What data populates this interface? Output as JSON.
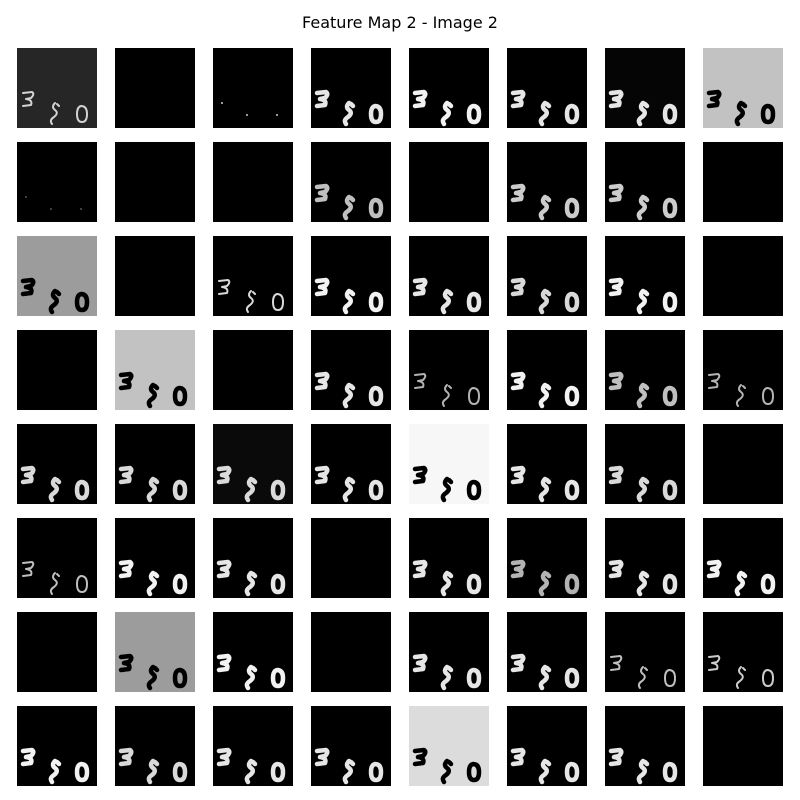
{
  "figure": {
    "title": "Feature Map 2 - Image 2",
    "rows": 8,
    "cols": 8
  },
  "tiles": [
    {
      "bg": "#262626",
      "digit": "#f2f2f2",
      "style": "outline",
      "brightness": 0.85
    },
    {
      "bg": "#000000",
      "digit": null,
      "style": "none",
      "brightness": 0
    },
    {
      "bg": "#000000",
      "digit": "#ffffff",
      "style": "dots",
      "brightness": 0.6
    },
    {
      "bg": "#000000",
      "digit": "#ffffff",
      "style": "filled",
      "brightness": 0.9
    },
    {
      "bg": "#000000",
      "digit": "#ffffff",
      "style": "filled",
      "brightness": 0.95
    },
    {
      "bg": "#000000",
      "digit": "#ffffff",
      "style": "filled",
      "brightness": 0.9
    },
    {
      "bg": "#050505",
      "digit": "#ffffff",
      "style": "filled",
      "brightness": 0.9
    },
    {
      "bg": "#c2c2c2",
      "digit": "#000000",
      "style": "filled",
      "brightness": 1
    },
    {
      "bg": "#000000",
      "digit": "#ffffff",
      "style": "dots",
      "brightness": 0.25
    },
    {
      "bg": "#000000",
      "digit": null,
      "style": "none",
      "brightness": 0
    },
    {
      "bg": "#000000",
      "digit": null,
      "style": "none",
      "brightness": 0
    },
    {
      "bg": "#000000",
      "digit": "#ffffff",
      "style": "filled",
      "brightness": 0.75
    },
    {
      "bg": "#000000",
      "digit": null,
      "style": "none",
      "brightness": 0
    },
    {
      "bg": "#000000",
      "digit": "#ffffff",
      "style": "filled",
      "brightness": 0.8
    },
    {
      "bg": "#000000",
      "digit": "#ffffff",
      "style": "filled",
      "brightness": 0.8
    },
    {
      "bg": "#000000",
      "digit": null,
      "style": "none",
      "brightness": 0
    },
    {
      "bg": "#9c9c9c",
      "digit": "#000000",
      "style": "filled",
      "brightness": 1
    },
    {
      "bg": "#000000",
      "digit": null,
      "style": "none",
      "brightness": 0
    },
    {
      "bg": "#000000",
      "digit": "#ffffff",
      "style": "outline",
      "brightness": 0.85
    },
    {
      "bg": "#000000",
      "digit": "#ffffff",
      "style": "filled",
      "brightness": 0.95
    },
    {
      "bg": "#000000",
      "digit": "#ffffff",
      "style": "filled",
      "brightness": 0.9
    },
    {
      "bg": "#000000",
      "digit": "#ffffff",
      "style": "filled",
      "brightness": 0.85
    },
    {
      "bg": "#000000",
      "digit": "#ffffff",
      "style": "filled",
      "brightness": 0.95
    },
    {
      "bg": "#000000",
      "digit": null,
      "style": "none",
      "brightness": 0
    },
    {
      "bg": "#000000",
      "digit": null,
      "style": "none",
      "brightness": 0
    },
    {
      "bg": "#c2c2c2",
      "digit": "#000000",
      "style": "filled",
      "brightness": 1
    },
    {
      "bg": "#000000",
      "digit": null,
      "style": "none",
      "brightness": 0
    },
    {
      "bg": "#000000",
      "digit": "#ffffff",
      "style": "filled",
      "brightness": 0.9
    },
    {
      "bg": "#000000",
      "digit": "#ffffff",
      "style": "outline",
      "brightness": 0.7
    },
    {
      "bg": "#000000",
      "digit": "#ffffff",
      "style": "filled",
      "brightness": 0.95
    },
    {
      "bg": "#000000",
      "digit": "#ffffff",
      "style": "filled",
      "brightness": 0.75
    },
    {
      "bg": "#000000",
      "digit": "#ffffff",
      "style": "outline",
      "brightness": 0.7
    },
    {
      "bg": "#000000",
      "digit": "#ffffff",
      "style": "filled",
      "brightness": 0.85
    },
    {
      "bg": "#000000",
      "digit": "#ffffff",
      "style": "filled",
      "brightness": 0.85
    },
    {
      "bg": "#0a0a0a",
      "digit": "#ffffff",
      "style": "filled",
      "brightness": 0.85
    },
    {
      "bg": "#000000",
      "digit": "#ffffff",
      "style": "filled",
      "brightness": 0.9
    },
    {
      "bg": "#f7f7f7",
      "digit": "#000000",
      "style": "filled",
      "brightness": 1
    },
    {
      "bg": "#000000",
      "digit": "#ffffff",
      "style": "filled",
      "brightness": 0.9
    },
    {
      "bg": "#000000",
      "digit": "#ffffff",
      "style": "filled",
      "brightness": 0.85
    },
    {
      "bg": "#000000",
      "digit": null,
      "style": "none",
      "brightness": 0
    },
    {
      "bg": "#000000",
      "digit": "#ffffff",
      "style": "outline",
      "brightness": 0.75
    },
    {
      "bg": "#000000",
      "digit": "#ffffff",
      "style": "filled",
      "brightness": 0.95
    },
    {
      "bg": "#000000",
      "digit": "#ffffff",
      "style": "filled",
      "brightness": 0.9
    },
    {
      "bg": "#000000",
      "digit": null,
      "style": "none",
      "brightness": 0
    },
    {
      "bg": "#000000",
      "digit": "#ffffff",
      "style": "filled",
      "brightness": 0.9
    },
    {
      "bg": "#000000",
      "digit": "#ffffff",
      "style": "filled",
      "brightness": 0.7
    },
    {
      "bg": "#000000",
      "digit": "#ffffff",
      "style": "filled",
      "brightness": 0.9
    },
    {
      "bg": "#000000",
      "digit": "#ffffff",
      "style": "filled",
      "brightness": 0.95
    },
    {
      "bg": "#000000",
      "digit": null,
      "style": "none",
      "brightness": 0
    },
    {
      "bg": "#9c9c9c",
      "digit": "#000000",
      "style": "filled",
      "brightness": 1
    },
    {
      "bg": "#000000",
      "digit": "#ffffff",
      "style": "filled",
      "brightness": 0.95
    },
    {
      "bg": "#000000",
      "digit": null,
      "style": "none",
      "brightness": 0
    },
    {
      "bg": "#000000",
      "digit": "#ffffff",
      "style": "filled",
      "brightness": 0.9
    },
    {
      "bg": "#000000",
      "digit": "#ffffff",
      "style": "filled",
      "brightness": 0.9
    },
    {
      "bg": "#000000",
      "digit": "#ffffff",
      "style": "outline",
      "brightness": 0.75
    },
    {
      "bg": "#000000",
      "digit": "#ffffff",
      "style": "outline",
      "brightness": 0.8
    },
    {
      "bg": "#000000",
      "digit": "#ffffff",
      "style": "filled",
      "brightness": 0.95
    },
    {
      "bg": "#000000",
      "digit": "#ffffff",
      "style": "filled",
      "brightness": 0.85
    },
    {
      "bg": "#000000",
      "digit": "#ffffff",
      "style": "filled",
      "brightness": 0.9
    },
    {
      "bg": "#000000",
      "digit": "#ffffff",
      "style": "filled",
      "brightness": 0.9
    },
    {
      "bg": "#dcdcdc",
      "digit": "#000000",
      "style": "filled",
      "brightness": 1
    },
    {
      "bg": "#000000",
      "digit": "#ffffff",
      "style": "filled",
      "brightness": 0.9
    },
    {
      "bg": "#000000",
      "digit": "#ffffff",
      "style": "filled",
      "brightness": 0.9
    },
    {
      "bg": "#000000",
      "digit": null,
      "style": "none",
      "brightness": 0
    }
  ]
}
